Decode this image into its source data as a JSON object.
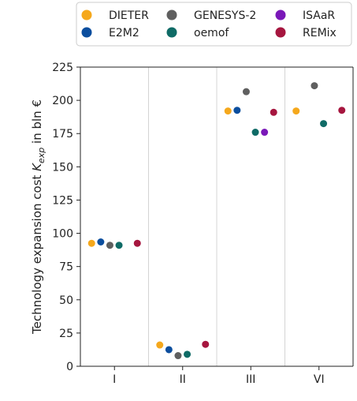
{
  "chart_data": {
    "type": "scatter",
    "title": "",
    "xlabel": "",
    "ylabel": "Technology expansion cost",
    "ylabel_symbol": "K",
    "ylabel_subscript": "exp",
    "ylabel_unit": "in bln €",
    "categories": [
      "I",
      "II",
      "III",
      "VI"
    ],
    "ylim": [
      0,
      225
    ],
    "yticks": [
      0,
      25,
      50,
      75,
      100,
      125,
      150,
      175,
      200,
      225
    ],
    "grid": false,
    "category_separators": true,
    "legend_position": "top",
    "series": [
      {
        "name": "DIETER",
        "color": "#F5A81C",
        "values": [
          92.5,
          16,
          192,
          192
        ]
      },
      {
        "name": "E2M2",
        "color": "#0B4E9E",
        "values": [
          93.5,
          12.5,
          192.5,
          null
        ]
      },
      {
        "name": "GENESYS-2",
        "color": "#5F5F5F",
        "values": [
          91,
          8,
          206.5,
          211
        ]
      },
      {
        "name": "oemof",
        "color": "#0F6B66",
        "values": [
          91,
          9,
          176,
          182.5
        ]
      },
      {
        "name": "ISAaR",
        "color": "#7A18B8",
        "values": [
          null,
          null,
          176,
          null
        ]
      },
      {
        "name": "REMix",
        "color": "#A6163F",
        "values": [
          92.5,
          16.5,
          191,
          192.5
        ]
      }
    ]
  }
}
